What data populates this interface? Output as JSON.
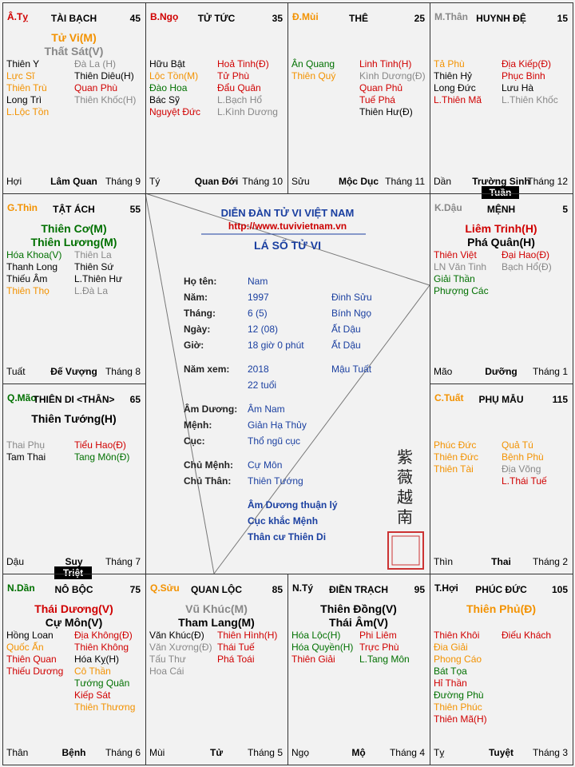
{
  "palaces": [
    {
      "stem": "Â.Tỵ",
      "stem_color": "#d00000",
      "name": "TÀI BẠCH",
      "age": 45,
      "main": [
        {
          "text": "Tử Vi(M)",
          "color": "#f39200"
        },
        {
          "text": "Thất Sát(V)",
          "color": "#888888"
        }
      ],
      "left": [
        {
          "text": "Thiên Y",
          "color": "#000000"
        },
        {
          "text": "Lực Sĩ",
          "color": "#f39200"
        },
        {
          "text": "Thiên Trù",
          "color": "#f39200"
        },
        {
          "text": "Long Trì",
          "color": "#000000"
        },
        {
          "text": "L.Lộc Tồn",
          "color": "#f39200"
        }
      ],
      "right": [
        {
          "text": "Đà La (H)",
          "color": "#888888"
        },
        {
          "text": "Thiên Diêu(H)",
          "color": "#000000"
        },
        {
          "text": "Quan Phù",
          "color": "#d00000"
        },
        {
          "text": "Thiên Khốc(H)",
          "color": "#888888"
        }
      ],
      "footer": {
        "branch": "Hợi",
        "stage": "Lâm Quan",
        "month": "Tháng 9"
      }
    },
    {
      "stem": "B.Ngọ",
      "stem_color": "#d00000",
      "name": "TỬ TỨC",
      "age": 35,
      "main": [],
      "left": [
        {
          "text": "Hữu Bật",
          "color": "#000000"
        },
        {
          "text": "Lộc Tồn(M)",
          "color": "#f39200"
        },
        {
          "text": "Đào Hoa",
          "color": "#007000"
        },
        {
          "text": "Bác Sỹ",
          "color": "#000000"
        },
        {
          "text": "Nguyệt Đức",
          "color": "#d00000"
        }
      ],
      "right": [
        {
          "text": "Hoả Tinh(Đ)",
          "color": "#d00000"
        },
        {
          "text": "Tử Phù",
          "color": "#d00000"
        },
        {
          "text": "Đẩu Quân",
          "color": "#d00000"
        },
        {
          "text": "L.Bạch Hổ",
          "color": "#888888"
        },
        {
          "text": "L.Kình Dương",
          "color": "#888888"
        }
      ],
      "footer": {
        "branch": "Tý",
        "stage": "Quan Đới",
        "month": "Tháng 10"
      }
    },
    {
      "stem": "Đ.Mùi",
      "stem_color": "#f39200",
      "name": "THÊ",
      "age": 25,
      "main": [],
      "left": [
        {
          "text": "Ân Quang",
          "color": "#007000"
        },
        {
          "text": "Thiên Quý",
          "color": "#f39200"
        }
      ],
      "right": [
        {
          "text": "Linh Tinh(H)",
          "color": "#d00000"
        },
        {
          "text": "Kình Dương(Đ)",
          "color": "#888888"
        },
        {
          "text": "Quan Phủ",
          "color": "#d00000"
        },
        {
          "text": "Tuế Phá",
          "color": "#d00000"
        },
        {
          "text": "Thiên Hư(Đ)",
          "color": "#000000"
        }
      ],
      "footer": {
        "branch": "Sửu",
        "stage": "Mộc Dục",
        "month": "Tháng 11"
      }
    },
    {
      "stem": "M.Thân",
      "stem_color": "#888888",
      "name": "HUYNH ĐỆ",
      "age": 15,
      "main": [],
      "left": [
        {
          "text": "Tả Phù",
          "color": "#f39200"
        },
        {
          "text": "Thiên Hỷ",
          "color": "#000000"
        },
        {
          "text": "Long Đức",
          "color": "#000000"
        },
        {
          "text": "L.Thiên Mã",
          "color": "#d00000"
        }
      ],
      "right": [
        {
          "text": "Địa Kiếp(Đ)",
          "color": "#d00000"
        },
        {
          "text": "Phục Binh",
          "color": "#d00000"
        },
        {
          "text": "Lưu Hà",
          "color": "#000000"
        },
        {
          "text": "L.Thiên Khốc",
          "color": "#888888"
        }
      ],
      "footer": {
        "branch": "Dần",
        "stage": "Trường Sinh",
        "month": "Tháng 12"
      },
      "badge": "Tuần"
    },
    {
      "stem": "G.Thìn",
      "stem_color": "#f39200",
      "name": "TẬT ÁCH",
      "age": 55,
      "main": [
        {
          "text": "Thiên Cơ(M)",
          "color": "#007000"
        },
        {
          "text": "Thiên Lương(M)",
          "color": "#007000"
        }
      ],
      "left": [
        {
          "text": "Hóa Khoa(V)",
          "color": "#007000"
        },
        {
          "text": "Thanh Long",
          "color": "#000000"
        },
        {
          "text": "Thiếu Âm",
          "color": "#000000"
        },
        {
          "text": "Thiên Thọ",
          "color": "#f39200"
        }
      ],
      "right": [
        {
          "text": "Thiên La",
          "color": "#888888"
        },
        {
          "text": "Thiên Sứ",
          "color": "#000000"
        },
        {
          "text": "L.Thiên Hư",
          "color": "#000000"
        },
        {
          "text": "L.Đà La",
          "color": "#888888"
        }
      ],
      "footer": {
        "branch": "Tuất",
        "stage": "Đế Vượng",
        "month": "Tháng 8"
      }
    },
    {
      "stem": "K.Dậu",
      "stem_color": "#888888",
      "name": "MỆNH",
      "age": 5,
      "main": [
        {
          "text": "Liêm Trinh(H)",
          "color": "#d00000"
        },
        {
          "text": "Phá Quân(H)",
          "color": "#000000"
        }
      ],
      "left": [
        {
          "text": "Thiên Việt",
          "color": "#d00000"
        },
        {
          "text": "LN Văn Tinh",
          "color": "#888888"
        },
        {
          "text": "Giải Thần",
          "color": "#007000"
        },
        {
          "text": "Phượng Các",
          "color": "#007000"
        }
      ],
      "right": [
        {
          "text": "Đại Hao(Đ)",
          "color": "#d00000"
        },
        {
          "text": "Bạch Hổ(Đ)",
          "color": "#888888"
        }
      ],
      "footer": {
        "branch": "Mão",
        "stage": "Dưỡng",
        "month": "Tháng 1"
      }
    },
    {
      "stem": "Q.Mão",
      "stem_color": "#007000",
      "name": "THIÊN DI <THÂN>",
      "age": 65,
      "main": [
        {
          "text": "Thiên Tướng(H)",
          "color": "#000000"
        }
      ],
      "left": [
        {
          "text": "Thai Phụ",
          "color": "#888888"
        },
        {
          "text": "Tam Thai",
          "color": "#000000"
        }
      ],
      "right": [
        {
          "text": "Tiểu Hao(Đ)",
          "color": "#d00000"
        },
        {
          "text": "Tang Môn(Đ)",
          "color": "#007000"
        }
      ],
      "footer": {
        "branch": "Dậu",
        "stage": "Suy",
        "month": "Tháng 7"
      },
      "badge": "Triệt"
    },
    {
      "stem": "C.Tuất",
      "stem_color": "#f39200",
      "name": "PHỤ MẪU",
      "age": 115,
      "main": [],
      "left": [
        {
          "text": "Phúc Đức",
          "color": "#f39200"
        },
        {
          "text": "Thiên Đức",
          "color": "#f39200"
        },
        {
          "text": "Thiên Tài",
          "color": "#f39200"
        }
      ],
      "right": [
        {
          "text": "Quả Tú",
          "color": "#f39200"
        },
        {
          "text": "Bệnh Phù",
          "color": "#f39200"
        },
        {
          "text": "Địa Võng",
          "color": "#888888"
        },
        {
          "text": "L.Thái Tuế",
          "color": "#d00000"
        }
      ],
      "footer": {
        "branch": "Thìn",
        "stage": "Thai",
        "month": "Tháng 2"
      }
    },
    {
      "stem": "N.Dần",
      "stem_color": "#007000",
      "name": "NÔ BỘC",
      "age": 75,
      "main": [
        {
          "text": "Thái Dương(V)",
          "color": "#d00000"
        },
        {
          "text": "Cự Môn(V)",
          "color": "#000000"
        }
      ],
      "left": [
        {
          "text": "Hồng Loan",
          "color": "#000000"
        },
        {
          "text": "Quốc Ấn",
          "color": "#f39200"
        },
        {
          "text": "Thiên Quan",
          "color": "#d00000"
        },
        {
          "text": "Thiếu Dương",
          "color": "#d00000"
        }
      ],
      "right": [
        {
          "text": "Địa Không(Đ)",
          "color": "#d00000"
        },
        {
          "text": "Thiên Không",
          "color": "#d00000"
        },
        {
          "text": "Hóa Kỵ(H)",
          "color": "#000000"
        },
        {
          "text": "Cô Thần",
          "color": "#f39200"
        },
        {
          "text": "Tướng Quân",
          "color": "#007000"
        },
        {
          "text": "Kiếp Sát",
          "color": "#d00000"
        },
        {
          "text": "Thiên Thương",
          "color": "#f39200"
        }
      ],
      "footer": {
        "branch": "Thân",
        "stage": "Bệnh",
        "month": "Tháng 6"
      }
    },
    {
      "stem": "Q.Sửu",
      "stem_color": "#f39200",
      "name": "QUAN LỘC",
      "age": 85,
      "main": [
        {
          "text": "Vũ Khúc(M)",
          "color": "#888888"
        },
        {
          "text": "Tham Lang(M)",
          "color": "#000000"
        }
      ],
      "left": [
        {
          "text": "Văn Khúc(Đ)",
          "color": "#000000"
        },
        {
          "text": "Văn Xương(Đ)",
          "color": "#888888"
        },
        {
          "text": "Tấu Thư",
          "color": "#888888"
        },
        {
          "text": "Hoa Cái",
          "color": "#888888"
        }
      ],
      "right": [
        {
          "text": "Thiên Hình(H)",
          "color": "#d00000"
        },
        {
          "text": "Thái Tuế",
          "color": "#d00000"
        },
        {
          "text": "Phá Toái",
          "color": "#d00000"
        }
      ],
      "footer": {
        "branch": "Mùi",
        "stage": "Tử",
        "month": "Tháng 5"
      }
    },
    {
      "stem": "N.Tý",
      "stem_color": "#000000",
      "name": "ĐIỀN TRẠCH",
      "age": 95,
      "main": [
        {
          "text": "Thiên Đồng(V)",
          "color": "#000000"
        },
        {
          "text": "Thái Âm(V)",
          "color": "#000000"
        }
      ],
      "left": [
        {
          "text": "Hóa Lộc(H)",
          "color": "#007000"
        },
        {
          "text": "Hóa Quyền(H)",
          "color": "#007000"
        },
        {
          "text": "Thiên Giải",
          "color": "#d00000"
        }
      ],
      "right": [
        {
          "text": "Phi Liêm",
          "color": "#d00000"
        },
        {
          "text": "Trực Phù",
          "color": "#d00000"
        },
        {
          "text": "L.Tang Môn",
          "color": "#007000"
        }
      ],
      "footer": {
        "branch": "Ngọ",
        "stage": "Mộ",
        "month": "Tháng 4"
      }
    },
    {
      "stem": "T.Hợi",
      "stem_color": "#000000",
      "name": "PHÚC ĐỨC",
      "age": 105,
      "main": [
        {
          "text": "Thiên Phủ(Đ)",
          "color": "#f39200"
        }
      ],
      "left": [
        {
          "text": "Thiên Khôi",
          "color": "#d00000"
        },
        {
          "text": "Đia Giải",
          "color": "#f39200"
        },
        {
          "text": "Phong Cáo",
          "color": "#f39200"
        },
        {
          "text": "Bát Tọa",
          "color": "#007000"
        },
        {
          "text": "Hỉ Thần",
          "color": "#d00000"
        },
        {
          "text": "Đường Phù",
          "color": "#007000"
        },
        {
          "text": "Thiên Phúc",
          "color": "#f39200"
        },
        {
          "text": "Thiên Mã(H)",
          "color": "#d00000"
        }
      ],
      "right": [
        {
          "text": "Điếu Khách",
          "color": "#d00000"
        }
      ],
      "footer": {
        "branch": "Tỵ",
        "stage": "Tuyệt",
        "month": "Tháng 3"
      }
    }
  ],
  "center": {
    "title": "DIỄN ĐÀN TỬ VI VIỆT NAM",
    "url": "http://www.tuvivietnam.vn",
    "subtitle": "LÁ SỐ TỬ VI",
    "info": [
      {
        "label": "Họ tên:",
        "value": "Nam"
      },
      {
        "label": "Năm:",
        "value": "1997",
        "value2": "Đinh Sửu"
      },
      {
        "label": "Tháng:",
        "value": "6 (5)",
        "value2": "Bính Ngọ"
      },
      {
        "label": "Ngày:",
        "value": "12 (08)",
        "value2": "Ất Dậu"
      },
      {
        "label": "Giờ:",
        "value": "18 giờ 0 phút",
        "value2": "Ất Dậu"
      },
      {
        "label": "Năm xem:",
        "value": "2018",
        "value2": "Mậu Tuất"
      },
      {
        "value": "22 tuổi"
      },
      {
        "label": "Âm Dương:",
        "value": "Âm Nam"
      },
      {
        "label": "Mệnh:",
        "value": "Giản Hạ Thủy"
      },
      {
        "label": "Cục:",
        "value": "Thổ ngũ cục"
      },
      {
        "label": "Chủ Mệnh:",
        "value": "Cự Môn"
      },
      {
        "label": "Chủ Thân:",
        "value": "Thiên Tướng"
      }
    ],
    "notes": [
      "Âm Dương thuận lý",
      "Cục khắc Mệnh",
      "Thân cư Thiên Di"
    ],
    "seal_text": "紫薇越南"
  }
}
